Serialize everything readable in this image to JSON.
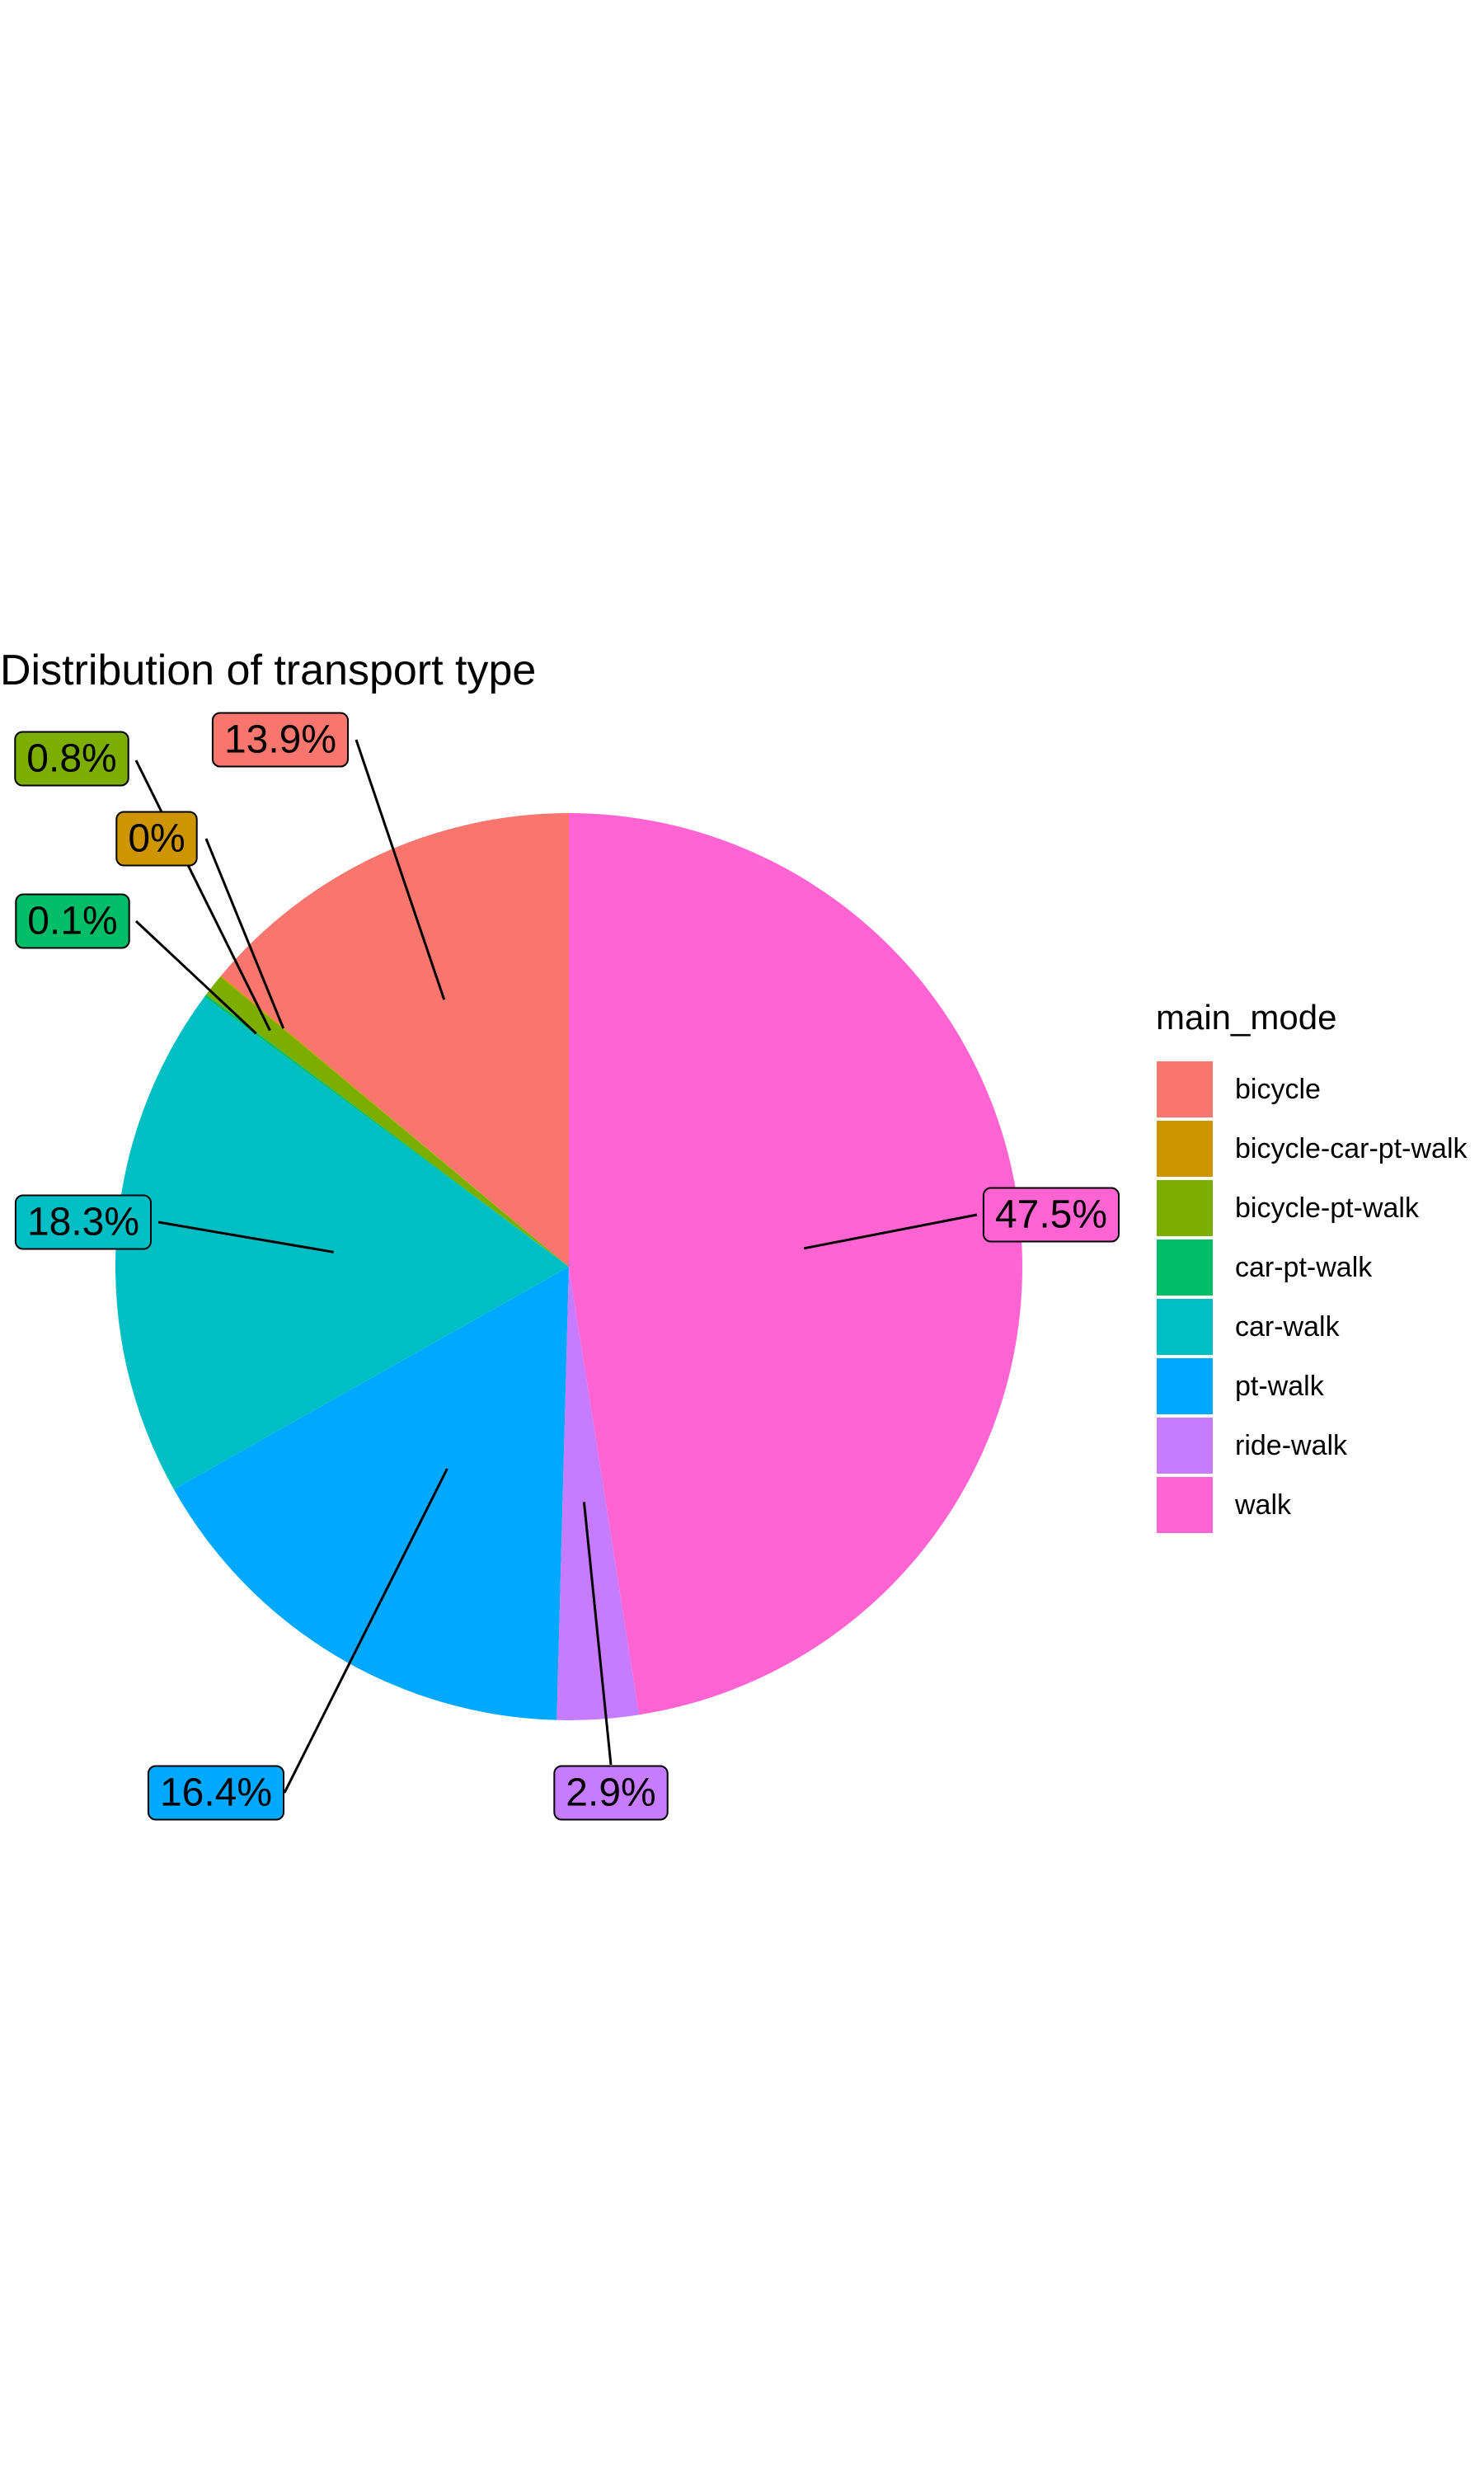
{
  "chart_data": {
    "type": "pie",
    "title": "Distribution of transport type",
    "legend": {
      "title": "main_mode",
      "position": "right"
    },
    "slices": [
      {
        "name": "bicycle",
        "label": "13.9%",
        "value": 13.9,
        "color": "#F8766D"
      },
      {
        "name": "bicycle-car-pt-walk",
        "label": "0%",
        "value": 0.05,
        "color": "#CD9600"
      },
      {
        "name": "bicycle-pt-walk",
        "label": "0.8%",
        "value": 0.8,
        "color": "#7CAE00"
      },
      {
        "name": "car-pt-walk",
        "label": "0.1%",
        "value": 0.1,
        "color": "#00BE67"
      },
      {
        "name": "car-walk",
        "label": "18.3%",
        "value": 18.3,
        "color": "#00BFC4"
      },
      {
        "name": "pt-walk",
        "label": "16.4%",
        "value": 16.4,
        "color": "#00A9FF"
      },
      {
        "name": "ride-walk",
        "label": "2.9%",
        "value": 2.9,
        "color": "#C77CFF"
      },
      {
        "name": "walk",
        "label": "47.5%",
        "value": 47.5,
        "color": "#FF64D2"
      }
    ]
  }
}
